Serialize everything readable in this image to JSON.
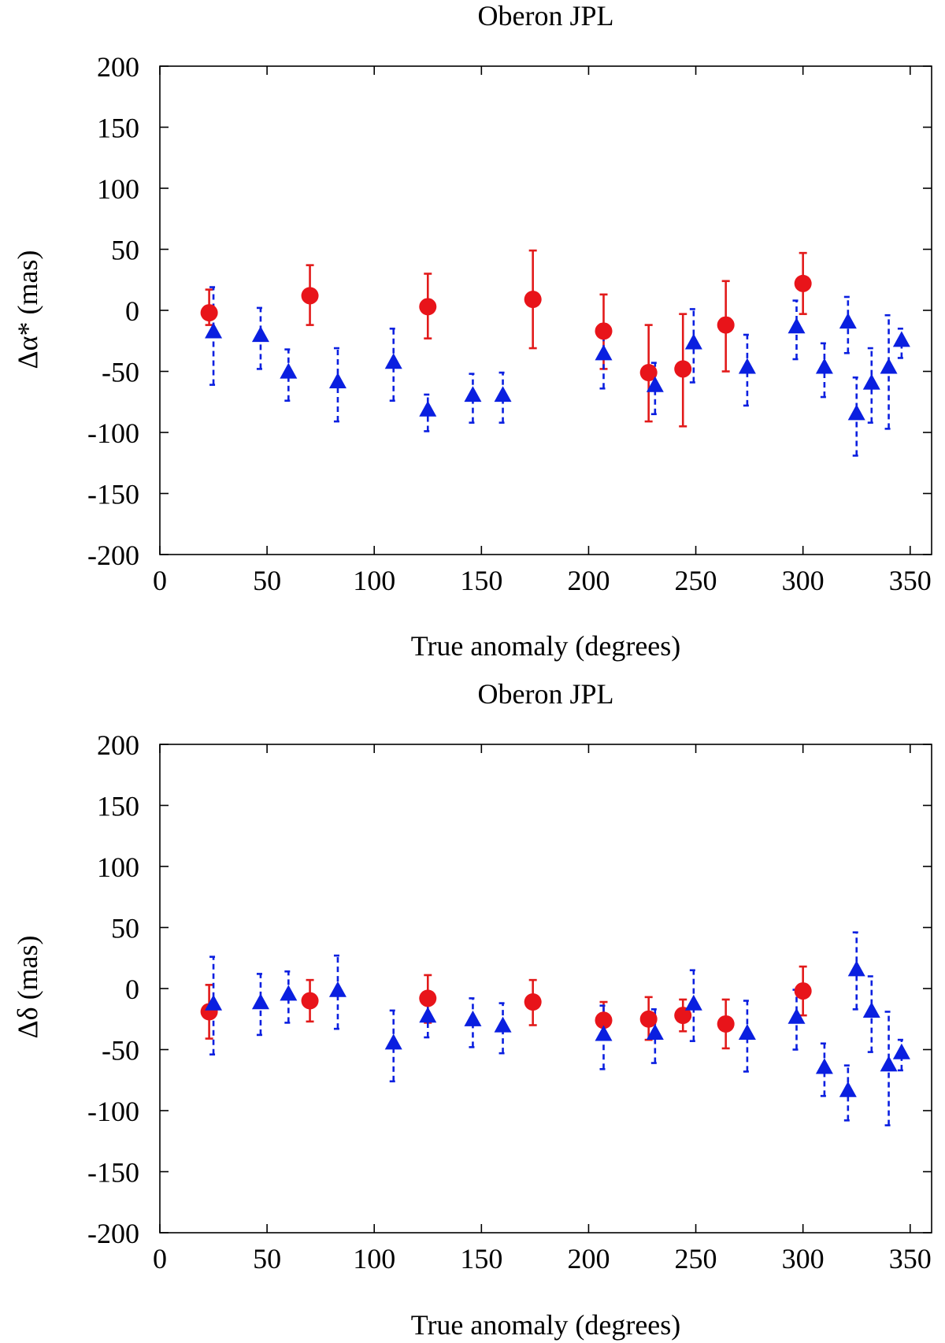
{
  "chart_data": [
    {
      "type": "scatter",
      "title": "Oberon JPL",
      "xlabel": "True anomaly (degrees)",
      "ylabel": "Δα* (mas)",
      "xlim": [
        0,
        360
      ],
      "ylim": [
        -200,
        200
      ],
      "xticks": [
        0,
        50,
        100,
        150,
        200,
        250,
        300,
        350
      ],
      "yticks": [
        -200,
        -150,
        -100,
        -50,
        0,
        50,
        100,
        150,
        200
      ],
      "grid": false,
      "series": [
        {
          "name": "red circles",
          "marker": "circle",
          "color": "#e8141a",
          "line_style": "solid",
          "points": [
            {
              "x": 23,
              "y": -2,
              "lo": -12,
              "hi": 17
            },
            {
              "x": 70,
              "y": 12,
              "lo": -12,
              "hi": 37
            },
            {
              "x": 125,
              "y": 3,
              "lo": -23,
              "hi": 30
            },
            {
              "x": 174,
              "y": 9,
              "lo": -31,
              "hi": 49
            },
            {
              "x": 207,
              "y": -17,
              "lo": -48,
              "hi": 13
            },
            {
              "x": 228,
              "y": -51,
              "lo": -91,
              "hi": -12
            },
            {
              "x": 244,
              "y": -48,
              "lo": -95,
              "hi": -3
            },
            {
              "x": 264,
              "y": -12,
              "lo": -50,
              "hi": 24
            },
            {
              "x": 300,
              "y": 22,
              "lo": -3,
              "hi": 47
            }
          ]
        },
        {
          "name": "blue triangles",
          "marker": "triangle",
          "color": "#0a1fe0",
          "line_style": "dashed",
          "points": [
            {
              "x": 25,
              "y": -18,
              "lo": -61,
              "hi": 19
            },
            {
              "x": 47,
              "y": -21,
              "lo": -48,
              "hi": 2
            },
            {
              "x": 60,
              "y": -51,
              "lo": -74,
              "hi": -32
            },
            {
              "x": 83,
              "y": -59,
              "lo": -91,
              "hi": -31
            },
            {
              "x": 109,
              "y": -43,
              "lo": -74,
              "hi": -15
            },
            {
              "x": 125,
              "y": -82,
              "lo": -99,
              "hi": -69
            },
            {
              "x": 146,
              "y": -70,
              "lo": -92,
              "hi": -52
            },
            {
              "x": 160,
              "y": -70,
              "lo": -92,
              "hi": -51
            },
            {
              "x": 207,
              "y": -36,
              "lo": -64,
              "hi": -16
            },
            {
              "x": 231,
              "y": -62,
              "lo": -85,
              "hi": -43
            },
            {
              "x": 249,
              "y": -27,
              "lo": -59,
              "hi": 1
            },
            {
              "x": 274,
              "y": -47,
              "lo": -78,
              "hi": -20
            },
            {
              "x": 297,
              "y": -14,
              "lo": -40,
              "hi": 8
            },
            {
              "x": 310,
              "y": -47,
              "lo": -71,
              "hi": -27
            },
            {
              "x": 321,
              "y": -10,
              "lo": -35,
              "hi": 11
            },
            {
              "x": 325,
              "y": -85,
              "lo": -119,
              "hi": -55
            },
            {
              "x": 332,
              "y": -60,
              "lo": -92,
              "hi": -31
            },
            {
              "x": 340,
              "y": -47,
              "lo": -97,
              "hi": -4
            },
            {
              "x": 346,
              "y": -25,
              "lo": -39,
              "hi": -15
            }
          ]
        }
      ]
    },
    {
      "type": "scatter",
      "title": "Oberon JPL",
      "xlabel": "True anomaly (degrees)",
      "ylabel": "Δδ (mas)",
      "xlim": [
        0,
        360
      ],
      "ylim": [
        -200,
        200
      ],
      "xticks": [
        0,
        50,
        100,
        150,
        200,
        250,
        300,
        350
      ],
      "yticks": [
        -200,
        -150,
        -100,
        -50,
        0,
        50,
        100,
        150,
        200
      ],
      "grid": false,
      "series": [
        {
          "name": "red circles",
          "marker": "circle",
          "color": "#e8141a",
          "line_style": "solid",
          "points": [
            {
              "x": 23,
              "y": -19,
              "lo": -41,
              "hi": 3
            },
            {
              "x": 70,
              "y": -10,
              "lo": -27,
              "hi": 7
            },
            {
              "x": 125,
              "y": -8,
              "lo": -28,
              "hi": 11
            },
            {
              "x": 174,
              "y": -11,
              "lo": -30,
              "hi": 7
            },
            {
              "x": 207,
              "y": -26,
              "lo": -40,
              "hi": -11
            },
            {
              "x": 228,
              "y": -25,
              "lo": -42,
              "hi": -7
            },
            {
              "x": 244,
              "y": -22,
              "lo": -35,
              "hi": -9
            },
            {
              "x": 264,
              "y": -29,
              "lo": -49,
              "hi": -9
            },
            {
              "x": 300,
              "y": -2,
              "lo": -22,
              "hi": 18
            }
          ]
        },
        {
          "name": "blue triangles",
          "marker": "triangle",
          "color": "#0a1fe0",
          "line_style": "dashed",
          "points": [
            {
              "x": 25,
              "y": -13,
              "lo": -54,
              "hi": 26
            },
            {
              "x": 47,
              "y": -12,
              "lo": -38,
              "hi": 12
            },
            {
              "x": 60,
              "y": -5,
              "lo": -28,
              "hi": 14
            },
            {
              "x": 83,
              "y": -2,
              "lo": -33,
              "hi": 27
            },
            {
              "x": 109,
              "y": -45,
              "lo": -76,
              "hi": -18
            },
            {
              "x": 125,
              "y": -23,
              "lo": -40,
              "hi": -12
            },
            {
              "x": 146,
              "y": -26,
              "lo": -48,
              "hi": -8
            },
            {
              "x": 160,
              "y": -31,
              "lo": -53,
              "hi": -12
            },
            {
              "x": 207,
              "y": -38,
              "lo": -66,
              "hi": -14
            },
            {
              "x": 231,
              "y": -37,
              "lo": -61,
              "hi": -17
            },
            {
              "x": 249,
              "y": -13,
              "lo": -43,
              "hi": 15
            },
            {
              "x": 274,
              "y": -37,
              "lo": -68,
              "hi": -10
            },
            {
              "x": 297,
              "y": -24,
              "lo": -50,
              "hi": -1
            },
            {
              "x": 310,
              "y": -65,
              "lo": -88,
              "hi": -45
            },
            {
              "x": 321,
              "y": -84,
              "lo": -108,
              "hi": -63
            },
            {
              "x": 325,
              "y": 15,
              "lo": -17,
              "hi": 46
            },
            {
              "x": 332,
              "y": -19,
              "lo": -52,
              "hi": 10
            },
            {
              "x": 340,
              "y": -63,
              "lo": -112,
              "hi": -19
            },
            {
              "x": 346,
              "y": -53,
              "lo": -67,
              "hi": -42
            }
          ]
        }
      ]
    }
  ]
}
